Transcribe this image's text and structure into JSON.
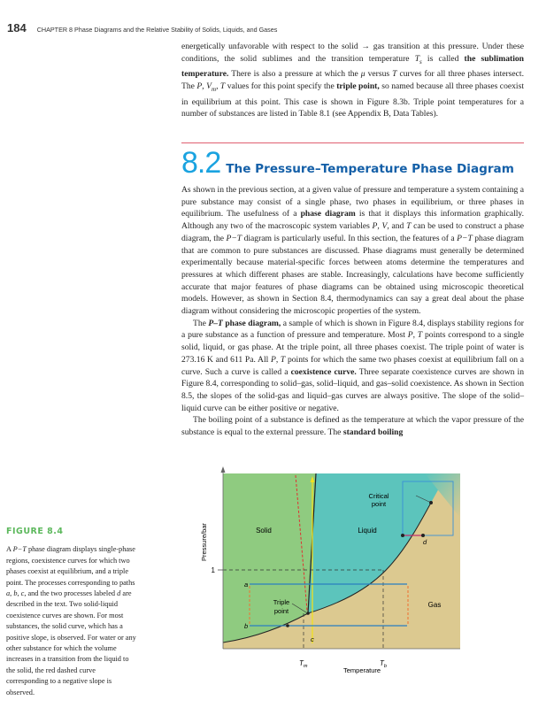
{
  "header": {
    "page_number": "184",
    "running_title": "CHAPTER 8  Phase Diagrams and the Relative Stability of Solids, Liquids, and Gases"
  },
  "intro_paragraphs": [
    [
      {
        "t": "energetically unfavorable with respect to the solid → gas transition at this pressure. Under these conditions, the solid sublimes and the transition temperature "
      },
      {
        "t": "T",
        "i": true
      },
      {
        "t": "s",
        "i": true,
        "sub": true
      },
      {
        "t": " is called "
      },
      {
        "t": "the sublimation temperature.",
        "b": true
      },
      {
        "t": " There is also a pressure at which the "
      },
      {
        "t": "μ",
        "i": true
      },
      {
        "t": " versus "
      },
      {
        "t": "T",
        "i": true
      },
      {
        "t": " curves for all three phases intersect. The "
      },
      {
        "t": "P",
        "i": true
      },
      {
        "t": ", "
      },
      {
        "t": "V",
        "i": true
      },
      {
        "t": "m",
        "i": true,
        "sub": true
      },
      {
        "t": ", "
      },
      {
        "t": "T",
        "i": true
      },
      {
        "t": " values for this point specify the "
      },
      {
        "t": "triple point,",
        "b": true
      },
      {
        "t": " so named because all three phases coexist in equilibrium at this point. This case is shown in Figure 8.3b. Triple point temperatures for a number of substances are listed in Table 8.1 (see Appendix B, Data Tables)."
      }
    ]
  ],
  "section": {
    "number": "8.2",
    "title": "The Pressure–Temperature Phase Diagram"
  },
  "body_paragraphs": [
    [
      {
        "t": "As shown in the previous section, at a given value of pressure and temperature a system containing a pure substance may consist of a single phase, two phases in equilibrium, or three phases in equilibrium. The usefulness of a "
      },
      {
        "t": "phase diagram",
        "b": true
      },
      {
        "t": " is that it displays this information graphically. Although any two of the macroscopic system variables "
      },
      {
        "t": "P",
        "i": true
      },
      {
        "t": ", "
      },
      {
        "t": "V",
        "i": true
      },
      {
        "t": ", and "
      },
      {
        "t": "T",
        "i": true
      },
      {
        "t": " can be used to construct a phase diagram, the "
      },
      {
        "t": "P−T",
        "i": true
      },
      {
        "t": " diagram is particularly useful. In this section, the features of a "
      },
      {
        "t": "P−T",
        "i": true
      },
      {
        "t": " phase diagram that are common to pure substances are discussed. Phase diagrams must generally be determined experimentally because material-specific forces between atoms determine the temperatures and pressures at which different phases are stable. Increasingly, calculations have become sufficiently accurate that major features of phase diagrams can be obtained using microscopic theoretical models. However, as shown in Section 8.4, thermodynamics can say a great deal about the phase diagram without considering the microscopic properties of the system."
      }
    ],
    [
      {
        "t": "The "
      },
      {
        "t": "P–T",
        "b": true,
        "i": true
      },
      {
        "t": " phase diagram,",
        "b": true
      },
      {
        "t": " a sample of which is shown in Figure 8.4, displays stability regions for a pure substance as a function of pressure and temperature. Most "
      },
      {
        "t": "P",
        "i": true
      },
      {
        "t": ", "
      },
      {
        "t": "T",
        "i": true
      },
      {
        "t": " points correspond to a single solid, liquid, or gas phase. At the triple point, all three phases coexist. The triple point of water is 273.16 K and 611 Pa. All "
      },
      {
        "t": "P",
        "i": true
      },
      {
        "t": ", "
      },
      {
        "t": "T",
        "i": true
      },
      {
        "t": " points for which the same two phases coexist at equilibrium fall on a curve. Such a curve is called a "
      },
      {
        "t": "coexistence curve.",
        "b": true
      },
      {
        "t": " Three separate coexistence curves are shown in Figure 8.4, corresponding to solid–gas, solid–liquid, and gas–solid coexistence. As shown in Section 8.5, the slopes of the solid-gas and liquid–gas curves are always positive. The slope of the solid–liquid curve can be either positive or negative."
      }
    ],
    [
      {
        "t": "The boiling point of a substance is defined as the temperature at which the vapor pressure of the substance is equal to the external pressure. The "
      },
      {
        "t": "standard boiling",
        "b": true
      }
    ]
  ],
  "figure": {
    "label": "FIGURE 8.4",
    "caption": [
      {
        "t": "A "
      },
      {
        "t": "P−T",
        "i": true
      },
      {
        "t": " phase diagram displays single-phase regions, coexistence curves for which two phases coexist at equilibrium, and a triple point. The processes corresponding to paths "
      },
      {
        "t": "a",
        "i": true
      },
      {
        "t": ", "
      },
      {
        "t": "b",
        "i": true
      },
      {
        "t": ", "
      },
      {
        "t": "c",
        "i": true
      },
      {
        "t": ", and the two processes labeled "
      },
      {
        "t": "d",
        "i": true
      },
      {
        "t": " are described in the text. Two solid-liquid coexistence curves are shown. For most substances, the solid curve, which has a positive slope, is observed. For water or any other substance for which the volume increases in a transition from the liquid to the solid, the red dashed curve corresponding to a negative slope is observed."
      }
    ],
    "diagram": {
      "ylabel": "Pressure/bar",
      "xlabel": "Temperature",
      "y_tick": "1",
      "x_ticks": [
        "T",
        "T"
      ],
      "x_tick_subs": [
        "m",
        "b"
      ],
      "regions": {
        "solid": "Solid",
        "liquid": "Liquid",
        "gas": "Gas"
      },
      "critical_point": [
        "Critical",
        "point"
      ],
      "triple_point": [
        "Triple",
        "point"
      ],
      "paths": {
        "a": "a",
        "b": "b",
        "c": "c",
        "d": "d"
      },
      "colors": {
        "solid": "#8fcb80",
        "liquid": "#5cc4bc",
        "gas": "#dcc990",
        "path": "#2a7fc0",
        "water_curve": "#e03030",
        "path_c": "#f0e020",
        "dashed_vertical": "#f07030",
        "process_d": "#c03070"
      }
    }
  },
  "colors": {
    "section_number": "#1aa3e0",
    "section_title": "#1560a8",
    "rule": "#e06070",
    "figure_label": "#5cb85c"
  }
}
